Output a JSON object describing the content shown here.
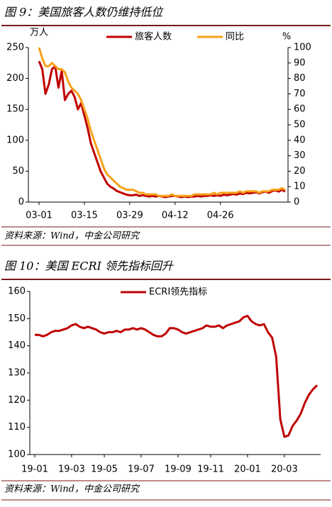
{
  "chart_data": [
    {
      "type": "line",
      "title": "图 9：美国旅客人数仍维持低位",
      "ylabel": "万人",
      "y2label": "%",
      "source": "资料来源：Wind，中金公司研究",
      "categories": [
        "03-01",
        null,
        null,
        null,
        null,
        null,
        null,
        null,
        null,
        null,
        null,
        null,
        null,
        null,
        "03-15",
        null,
        null,
        null,
        null,
        null,
        null,
        null,
        null,
        null,
        null,
        null,
        null,
        null,
        "03-29",
        null,
        null,
        null,
        null,
        null,
        null,
        null,
        null,
        null,
        null,
        null,
        null,
        null,
        "04-12",
        null,
        null,
        null,
        null,
        null,
        null,
        null,
        null,
        null,
        null,
        null,
        null,
        null,
        "04-26",
        null,
        null,
        null,
        null,
        null,
        null,
        null,
        null,
        null,
        null,
        null,
        null,
        null,
        null,
        null,
        null,
        null,
        null,
        null,
        null
      ],
      "ylim": [
        0,
        250
      ],
      "yticks": [
        0,
        50,
        100,
        150,
        200,
        250
      ],
      "y2lim": [
        0,
        100
      ],
      "y2ticks": [
        0,
        10,
        20,
        30,
        40,
        50,
        60,
        70,
        80,
        90,
        100
      ],
      "series": [
        {
          "name": "旅客人数",
          "color": "#c00000",
          "values": [
            228,
            215,
            175,
            190,
            215,
            220,
            185,
            212,
            165,
            175,
            180,
            170,
            150,
            160,
            140,
            120,
            95,
            80,
            65,
            50,
            40,
            30,
            25,
            22,
            18,
            16,
            14,
            12,
            11,
            11,
            12,
            10,
            11,
            10,
            9,
            10,
            9,
            10,
            9,
            8,
            9,
            10,
            10,
            9,
            8,
            9,
            8,
            9,
            9,
            10,
            9,
            10,
            10,
            11,
            10,
            11,
            10,
            12,
            11,
            12,
            13,
            12,
            14,
            13,
            15,
            14,
            15,
            16,
            14,
            16,
            17,
            15,
            18,
            19,
            17,
            20,
            17
          ]
        },
        {
          "name": "同比",
          "color": "#f7a11a",
          "axis": "y2",
          "values": [
            100,
            93,
            88,
            88,
            90,
            88,
            86,
            86,
            84,
            78,
            74,
            72,
            70,
            66,
            60,
            54,
            46,
            40,
            34,
            28,
            22,
            18,
            16,
            14,
            12,
            10,
            9,
            8,
            8,
            8,
            7,
            6,
            6,
            5,
            5,
            5,
            5,
            4,
            4,
            4,
            4,
            5,
            4,
            4,
            4,
            4,
            4,
            4,
            5,
            5,
            5,
            5,
            5,
            5,
            6,
            5,
            6,
            6,
            6,
            6,
            6,
            6,
            7,
            6,
            7,
            7,
            7,
            7,
            6,
            7,
            7,
            7,
            8,
            8,
            8,
            9,
            8
          ]
        }
      ]
    },
    {
      "type": "line",
      "title": "图 10：美国 ECRI 领先指标回升",
      "source": "资料来源：Wind，中金公司研究",
      "categories": [
        "19-01",
        null,
        null,
        null,
        null,
        null,
        null,
        null,
        null,
        "19-03",
        null,
        null,
        null,
        null,
        null,
        null,
        null,
        "19-05",
        null,
        null,
        null,
        null,
        null,
        null,
        null,
        null,
        "19-07",
        null,
        null,
        null,
        null,
        null,
        null,
        null,
        null,
        "19-09",
        null,
        null,
        null,
        null,
        null,
        null,
        null,
        "19-11",
        null,
        null,
        null,
        null,
        null,
        null,
        null,
        null,
        "20-01",
        null,
        null,
        null,
        null,
        null,
        null,
        null,
        null,
        "20-03",
        null,
        null,
        null,
        null,
        null,
        null,
        null,
        null
      ],
      "ylim": [
        100,
        160
      ],
      "yticks": [
        100,
        110,
        120,
        130,
        140,
        150,
        160
      ],
      "series": [
        {
          "name": "ECRI领先指标",
          "color": "#c00000",
          "values": [
            144,
            144,
            143.5,
            144,
            145,
            145.5,
            145.5,
            146,
            146.5,
            147.5,
            148,
            147,
            146.5,
            147,
            146.5,
            146,
            145,
            144.5,
            145,
            145,
            145.5,
            145,
            146,
            146,
            146.5,
            146,
            146.5,
            146,
            145,
            144,
            143.5,
            143.5,
            144.5,
            146.5,
            146.5,
            146,
            145,
            144.5,
            145,
            145.5,
            146,
            146.5,
            147.5,
            147,
            147,
            147.5,
            146.5,
            147.5,
            148,
            148.5,
            149,
            150.5,
            151,
            149,
            148,
            147.5,
            148,
            145,
            143,
            136,
            113,
            106.5,
            107,
            110.5,
            112.5,
            115,
            119,
            122,
            124,
            125.5
          ]
        }
      ]
    }
  ]
}
